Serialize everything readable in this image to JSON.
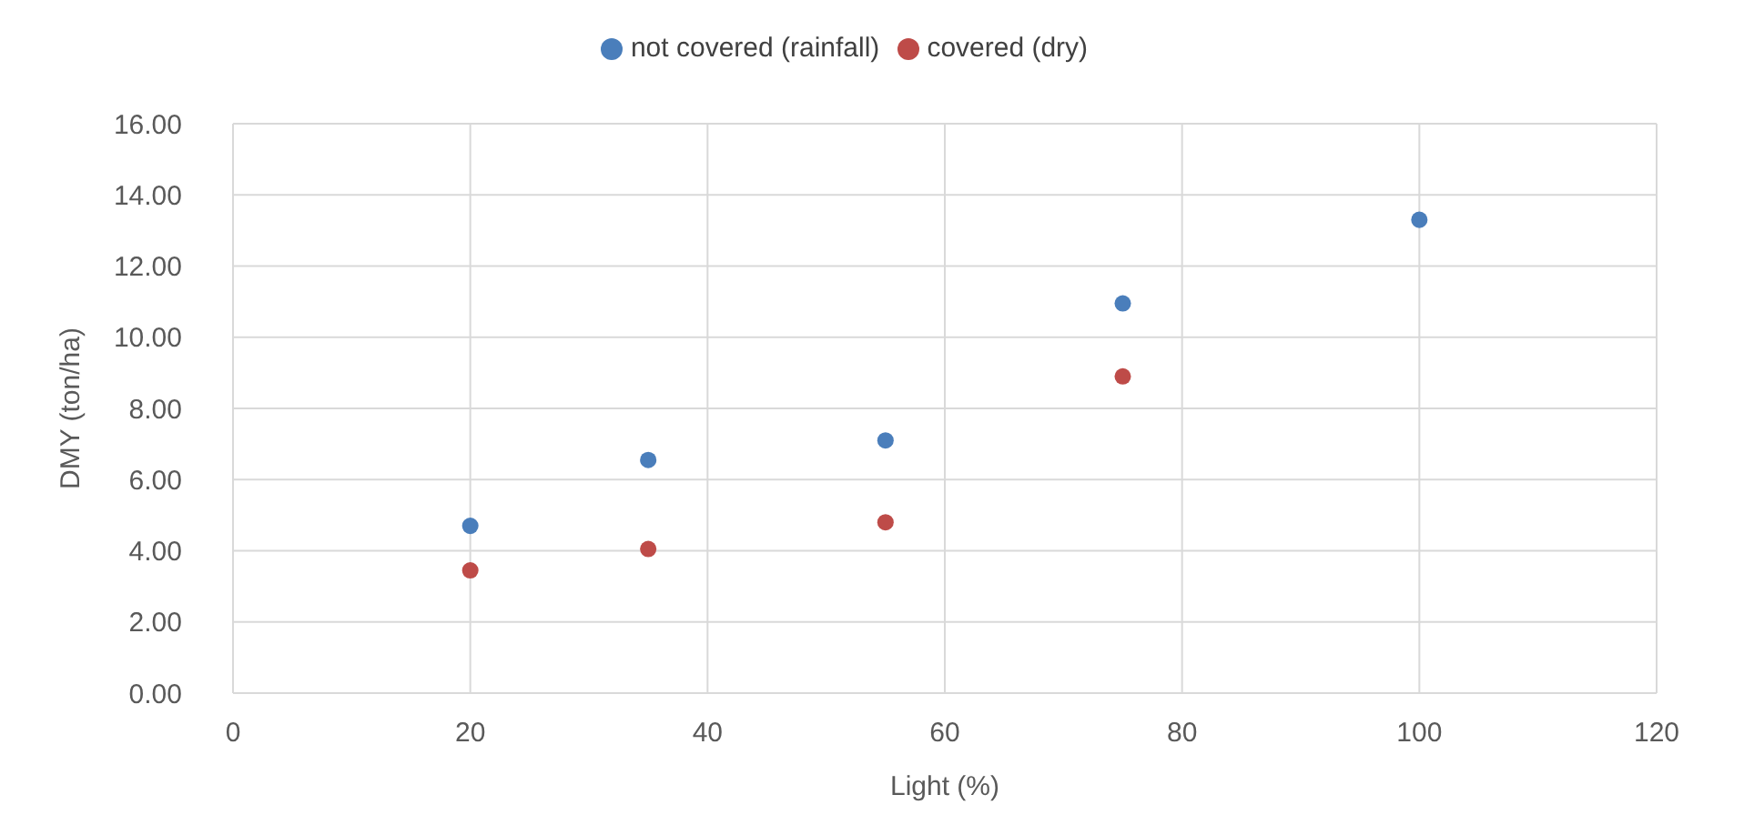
{
  "chart_data": {
    "type": "scatter",
    "xlabel": "Light (%)",
    "ylabel": "DMY (ton/ha)",
    "xlim": [
      0,
      120
    ],
    "xticks": [
      0,
      20,
      40,
      60,
      80,
      100,
      120
    ],
    "ylim": [
      0,
      16
    ],
    "yticks": [
      {
        "value": 0,
        "label": "0.00"
      },
      {
        "value": 2,
        "label": "2.00"
      },
      {
        "value": 4,
        "label": "4.00"
      },
      {
        "value": 6,
        "label": "6.00"
      },
      {
        "value": 8,
        "label": "8.00"
      },
      {
        "value": 10,
        "label": "10.00"
      },
      {
        "value": 12,
        "label": "12.00"
      },
      {
        "value": 14,
        "label": "14.00"
      },
      {
        "value": 16,
        "label": "16.00"
      }
    ],
    "grid": true,
    "legend": "top",
    "marker": "circle",
    "series": [
      {
        "name": "not covered (rainfall)",
        "color": "#4a7ebb",
        "x": [
          20,
          35,
          55,
          75,
          100
        ],
        "values": [
          4.7,
          6.55,
          7.1,
          10.95,
          13.3
        ]
      },
      {
        "name": "covered (dry)",
        "color": "#be4b48",
        "x": [
          20,
          35,
          55,
          75
        ],
        "values": [
          3.45,
          4.05,
          4.8,
          8.9
        ]
      }
    ]
  }
}
